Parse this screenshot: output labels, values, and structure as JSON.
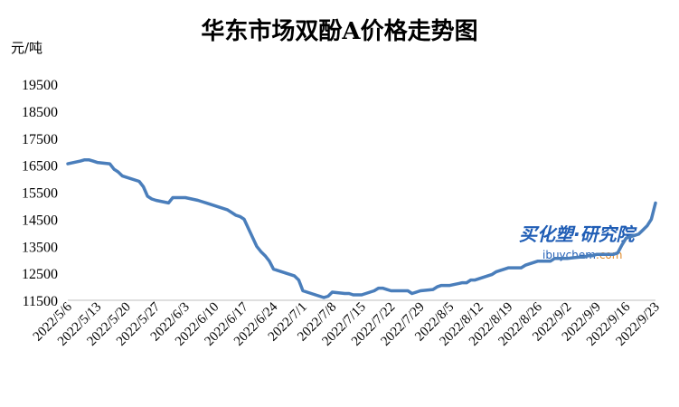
{
  "chart_data": {
    "type": "line",
    "title": "华东市场双酚A价格走势图",
    "ylabel": "元/吨",
    "xlabel": "",
    "ylim": [
      11500,
      19500
    ],
    "yticks": [
      11500,
      12500,
      13500,
      14500,
      15500,
      16500,
      17500,
      18500,
      19500
    ],
    "grid": false,
    "legend": "none",
    "line_color": "#4a7ebb",
    "watermark": {
      "cn": "买化塑·研究院",
      "en_a": "ibuychem",
      "en_b": ".com"
    },
    "x_tick_labels": [
      "2022/5/6",
      "2022/5/13",
      "2022/5/20",
      "2022/5/27",
      "2022/6/3",
      "2022/6/10",
      "2022/6/17",
      "2022/6/24",
      "2022/7/1",
      "2022/7/8",
      "2022/7/15",
      "2022/7/22",
      "2022/7/29",
      "2022/8/5",
      "2022/8/12",
      "2022/8/19",
      "2022/8/26",
      "2022/9/2",
      "2022/9/9",
      "2022/9/16",
      "2022/9/23"
    ],
    "series": [
      {
        "x": [
          "2022/5/6",
          "2022/5/9",
          "2022/5/10",
          "2022/5/11",
          "2022/5/12",
          "2022/5/13",
          "2022/5/16",
          "2022/5/17",
          "2022/5/18",
          "2022/5/19",
          "2022/5/20",
          "2022/5/23",
          "2022/5/24",
          "2022/5/25",
          "2022/5/26",
          "2022/5/27",
          "2022/5/30",
          "2022/5/31",
          "2022/6/1",
          "2022/6/2",
          "2022/6/3",
          "2022/6/6",
          "2022/6/7",
          "2022/6/8",
          "2022/6/9",
          "2022/6/10",
          "2022/6/13",
          "2022/6/14",
          "2022/6/15",
          "2022/6/16",
          "2022/6/17",
          "2022/6/20",
          "2022/6/21",
          "2022/6/22",
          "2022/6/23",
          "2022/6/24",
          "2022/6/27",
          "2022/6/28",
          "2022/6/29",
          "2022/6/30",
          "2022/7/1",
          "2022/7/4",
          "2022/7/5",
          "2022/7/6",
          "2022/7/7",
          "2022/7/8",
          "2022/7/11",
          "2022/7/12",
          "2022/7/13",
          "2022/7/14",
          "2022/7/15",
          "2022/7/18",
          "2022/7/19",
          "2022/7/20",
          "2022/7/21",
          "2022/7/22",
          "2022/7/25",
          "2022/7/26",
          "2022/7/27",
          "2022/7/28",
          "2022/7/29",
          "2022/8/1",
          "2022/8/2",
          "2022/8/3",
          "2022/8/4",
          "2022/8/5",
          "2022/8/8",
          "2022/8/9",
          "2022/8/10",
          "2022/8/11",
          "2022/8/12",
          "2022/8/15",
          "2022/8/16",
          "2022/8/17",
          "2022/8/18",
          "2022/8/19",
          "2022/8/22",
          "2022/8/23",
          "2022/8/24",
          "2022/8/25",
          "2022/8/26",
          "2022/8/29",
          "2022/8/30",
          "2022/8/31",
          "2022/9/1",
          "2022/9/2",
          "2022/9/5",
          "2022/9/6",
          "2022/9/7",
          "2022/9/8",
          "2022/9/9",
          "2022/9/13",
          "2022/9/14",
          "2022/9/15",
          "2022/9/16",
          "2022/9/19",
          "2022/9/20",
          "2022/9/21",
          "2022/9/22",
          "2022/9/23"
        ],
        "y": [
          16550,
          16650,
          16700,
          16700,
          16650,
          16600,
          16550,
          16350,
          16250,
          16100,
          16050,
          15900,
          15700,
          15350,
          15250,
          15200,
          15100,
          15300,
          15300,
          15300,
          15300,
          15200,
          15150,
          15100,
          15050,
          15000,
          14850,
          14750,
          14650,
          14600,
          14500,
          13500,
          13300,
          13150,
          12950,
          12650,
          12500,
          12450,
          12400,
          12250,
          11850,
          11700,
          11650,
          11600,
          11650,
          11800,
          11750,
          11750,
          11700,
          11700,
          11700,
          11850,
          11950,
          11950,
          11900,
          11850,
          11850,
          11850,
          11750,
          11800,
          11850,
          11900,
          12000,
          12050,
          12050,
          12050,
          12150,
          12150,
          12250,
          12250,
          12300,
          12450,
          12550,
          12600,
          12650,
          12700,
          12700,
          12800,
          12850,
          12900,
          12950,
          12950,
          13050,
          13050,
          13050,
          13050,
          13100,
          13100,
          13150,
          13150,
          13200,
          13200,
          13250,
          13550,
          13800,
          13950,
          14100,
          14250,
          14500,
          15100
        ]
      }
    ]
  }
}
